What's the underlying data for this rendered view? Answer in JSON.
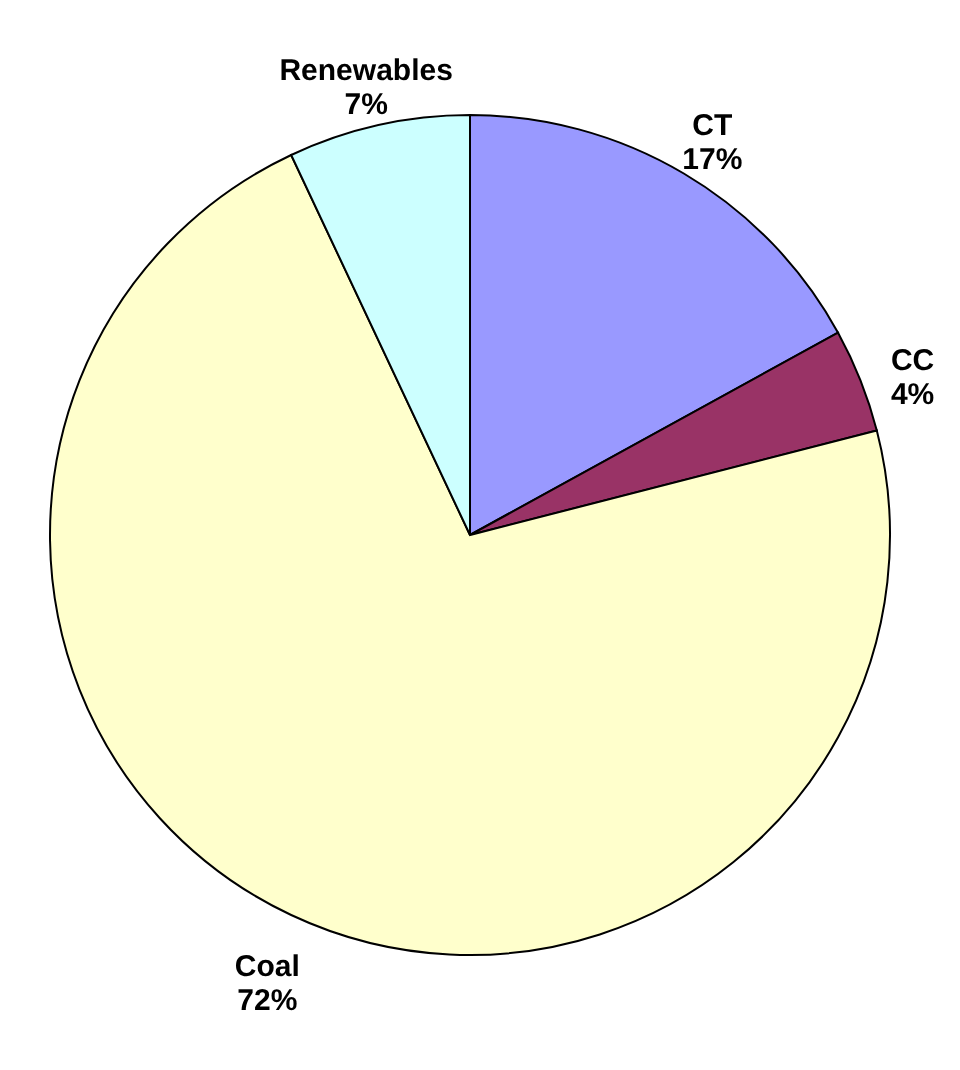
{
  "chart_data": {
    "type": "pie",
    "categories": [
      "CT",
      "CC",
      "Coal",
      "Renewables"
    ],
    "values": [
      17,
      4,
      72,
      7
    ],
    "colors": [
      "#9999ff",
      "#993366",
      "#ffffcc",
      "#ccffff"
    ],
    "value_labels": [
      "17%",
      "4%",
      "72%",
      "7%"
    ]
  }
}
